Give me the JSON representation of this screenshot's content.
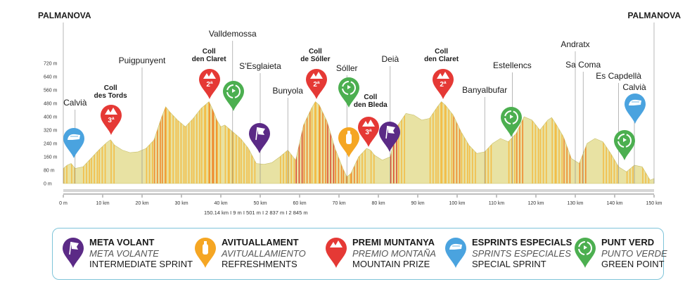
{
  "colors": {
    "sprint": "#5b2a86",
    "refresh": "#f5a623",
    "mountain": "#e53935",
    "special": "#4aa3df",
    "green": "#4caf50",
    "fill_base": "#e8e2a3"
  },
  "chart_data": {
    "type": "area",
    "xlabel": "",
    "ylabel": "",
    "xlim": [
      0,
      150
    ],
    "ylim": [
      0,
      720
    ],
    "xticks": [
      0,
      10,
      20,
      30,
      40,
      50,
      60,
      70,
      80,
      90,
      100,
      110,
      120,
      130,
      140,
      150
    ],
    "xtick_labels": [
      "0 m",
      "10 km",
      "20 km",
      "30 km",
      "40 km",
      "50 km",
      "60 km",
      "70 km",
      "80 km",
      "90 km",
      "100 km",
      "110 km",
      "120 km",
      "130 km",
      "140 km",
      "150 km"
    ],
    "yticks": [
      0,
      80,
      160,
      240,
      320,
      400,
      480,
      560,
      640,
      720
    ],
    "ytick_labels": [
      "0 m",
      "80 m",
      "160 m",
      "240 m",
      "320 m",
      "400 m",
      "480 m",
      "560 m",
      "640 m",
      "720 m"
    ],
    "profile": {
      "x": [
        0,
        1,
        2,
        3,
        5,
        7,
        9,
        11,
        12,
        13,
        15,
        17,
        19,
        21,
        23,
        25,
        26,
        27,
        29,
        31,
        33,
        35,
        36,
        37,
        38,
        39,
        40,
        41,
        42,
        43,
        45,
        47,
        49,
        51,
        53,
        55,
        57,
        59,
        61,
        63,
        64,
        65,
        67,
        69,
        71,
        72,
        73,
        75,
        77,
        78,
        79,
        81,
        83,
        85,
        87,
        89,
        91,
        93,
        95,
        96,
        97,
        99,
        101,
        103,
        105,
        107,
        109,
        111,
        113,
        115,
        117,
        119,
        121,
        123,
        124,
        125,
        127,
        129,
        131,
        133,
        135,
        137,
        139,
        141,
        143,
        145,
        147,
        149,
        150
      ],
      "y": [
        90,
        110,
        120,
        90,
        100,
        150,
        200,
        245,
        262,
        230,
        200,
        185,
        190,
        210,
        260,
        400,
        460,
        430,
        380,
        340,
        390,
        450,
        470,
        490,
        440,
        380,
        340,
        350,
        330,
        310,
        270,
        210,
        120,
        115,
        125,
        160,
        200,
        140,
        350,
        450,
        490,
        470,
        370,
        210,
        90,
        40,
        60,
        160,
        210,
        200,
        170,
        140,
        160,
        350,
        420,
        410,
        380,
        390,
        460,
        490,
        470,
        410,
        310,
        230,
        180,
        190,
        240,
        270,
        250,
        300,
        400,
        380,
        320,
        380,
        395,
        360,
        280,
        150,
        120,
        240,
        270,
        250,
        180,
        100,
        70,
        110,
        100,
        20,
        30
      ]
    },
    "stats_text": "150.14 km I  9 m I  501 m I  2 837 m I  2 845 m",
    "places": [
      {
        "name": "PALMANOVA",
        "x": 0
      },
      {
        "name": "Calvià",
        "x": 3
      },
      {
        "name": "Puigpunyent",
        "x": 20
      },
      {
        "name": "Valldemossa",
        "x": 43
      },
      {
        "name": "S'Esglaieta",
        "x": 50
      },
      {
        "name": "Bunyola",
        "x": 57
      },
      {
        "name": "Sóller",
        "x": 72
      },
      {
        "name": "Deià",
        "x": 83
      },
      {
        "name": "Banyalbufar",
        "x": 107
      },
      {
        "name": "Estellencs",
        "x": 114
      },
      {
        "name": "Andratx",
        "x": 130
      },
      {
        "name": "Sa Coma",
        "x": 132
      },
      {
        "name": "Es Capdellà",
        "x": 141
      },
      {
        "name": "Calvià",
        "x": 145
      },
      {
        "name": "PALMANOVA",
        "x": 150
      }
    ],
    "climbs": [
      {
        "line1": "Coll",
        "line2": "des Tords",
        "category": "3ª",
        "x": 12
      },
      {
        "line1": "Coll",
        "line2": "den Claret",
        "category": "2ª",
        "x": 37
      },
      {
        "line1": "Coll",
        "line2": "de Sóller",
        "category": "2ª",
        "x": 64
      },
      {
        "line1": "Coll",
        "line2": "den Bleda",
        "category": "3ª",
        "x": 78
      },
      {
        "line1": "Coll",
        "line2": "den Claret",
        "category": "2ª",
        "x": 96
      }
    ],
    "markers": [
      {
        "type": "special",
        "x": 3,
        "icon": "sprint-flag-icon"
      },
      {
        "type": "mountain",
        "x": 12,
        "icon": "mountain-icon",
        "label": "3ª"
      },
      {
        "type": "mountain",
        "x": 37,
        "icon": "mountain-icon",
        "label": "2ª"
      },
      {
        "type": "green",
        "x": 43,
        "icon": "recycle-icon"
      },
      {
        "type": "sprint",
        "x": 50,
        "icon": "flag-icon"
      },
      {
        "type": "mountain",
        "x": 64,
        "icon": "mountain-icon",
        "label": "2ª"
      },
      {
        "type": "green",
        "x": 72,
        "icon": "recycle-icon"
      },
      {
        "type": "refresh",
        "x": 72,
        "icon": "bottle-icon"
      },
      {
        "type": "mountain",
        "x": 78,
        "icon": "mountain-icon",
        "label": "3ª"
      },
      {
        "type": "sprint",
        "x": 83,
        "icon": "flag-icon"
      },
      {
        "type": "mountain",
        "x": 96,
        "icon": "mountain-icon",
        "label": "2ª"
      },
      {
        "type": "green",
        "x": 114,
        "icon": "recycle-icon"
      },
      {
        "type": "green",
        "x": 141,
        "icon": "recycle-icon"
      },
      {
        "type": "special",
        "x": 145,
        "icon": "sprint-flag-icon"
      }
    ]
  },
  "legend": [
    {
      "type": "sprint",
      "icon": "flag-icon",
      "l1": "META VOLANT",
      "l2": "META VOLANTE",
      "l3": "INTERMEDIATE SPRINT"
    },
    {
      "type": "refresh",
      "icon": "bottle-icon",
      "l1": "AVITUALLAMENT",
      "l2": "AVITUALLAMIENTO",
      "l3": "REFRESHMENTS"
    },
    {
      "type": "mountain",
      "icon": "mountain-icon",
      "l1": "PREMI MUNTANYA",
      "l2": "PREMIO MONTAÑA",
      "l3": "MOUNTAIN PRIZE"
    },
    {
      "type": "special",
      "icon": "sprint-flag-icon",
      "l1": "ESPRINTS ESPECIALS",
      "l2": "SPRINTS ESPECIALES",
      "l3": "SPECIAL SPRINT"
    },
    {
      "type": "green",
      "icon": "recycle-icon",
      "l1": "PUNT VERD",
      "l2": "PUNTO VERDE",
      "l3": "GREEN POINT"
    }
  ]
}
